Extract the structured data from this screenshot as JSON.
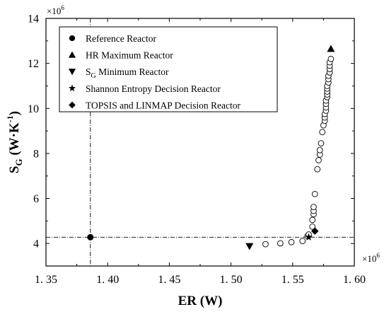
{
  "chart_data": {
    "type": "scatter",
    "title": "",
    "xlabel": "ER (W)",
    "ylabel": {
      "main": "S",
      "sub": "G",
      "units_pre": " (W·K",
      "sup": "-1",
      "units_post": ")"
    },
    "x_multiplier": {
      "base": "×10",
      "exp": "6"
    },
    "y_multiplier": {
      "base": "×10",
      "exp": "6"
    },
    "xlim": [
      1.35,
      1.6
    ],
    "ylim": [
      3.0,
      14.0
    ],
    "x_ticks": [
      "1. 35",
      "1. 40",
      "1. 45",
      "1. 50",
      "1. 55",
      "1. 60"
    ],
    "y_ticks": [
      "4",
      "6",
      "8",
      "10",
      "12",
      "14"
    ],
    "x_tick_values": [
      1.35,
      1.4,
      1.45,
      1.5,
      1.55,
      1.6
    ],
    "y_tick_values": [
      4,
      6,
      8,
      10,
      12,
      14
    ],
    "grid": false,
    "legend_position": "top-left",
    "legend": [
      {
        "marker": "circle",
        "label": "Reference Reactor"
      },
      {
        "marker": "triangle-up",
        "label": "HR Maximum Reactor"
      },
      {
        "marker": "triangle-down",
        "label": "S",
        "label_sub": "G",
        "label_post": " Minimum Reactor"
      },
      {
        "marker": "star",
        "label": "Shannon Entropy Decision Reactor"
      },
      {
        "marker": "diamond",
        "label": "TOPSIS and LINMAP Decision Reactor"
      }
    ],
    "reference_lines": {
      "x": 1.386,
      "y": 4.28
    },
    "pareto_front": [
      [
        1.528,
        3.97
      ],
      [
        1.54,
        4.01
      ],
      [
        1.549,
        4.06
      ],
      [
        1.558,
        4.11
      ],
      [
        1.562,
        4.33
      ],
      [
        1.563,
        4.4
      ],
      [
        1.566,
        4.75
      ],
      [
        1.566,
        5.05
      ],
      [
        1.567,
        5.3
      ],
      [
        1.567,
        5.45
      ],
      [
        1.567,
        5.62
      ],
      [
        1.568,
        6.2
      ],
      [
        1.57,
        7.3
      ],
      [
        1.571,
        7.7
      ],
      [
        1.572,
        7.95
      ],
      [
        1.572,
        8.15
      ],
      [
        1.573,
        8.45
      ],
      [
        1.574,
        8.95
      ],
      [
        1.575,
        9.25
      ],
      [
        1.576,
        9.45
      ],
      [
        1.576,
        9.6
      ],
      [
        1.576,
        9.75
      ],
      [
        1.577,
        9.9
      ],
      [
        1.577,
        10.05
      ],
      [
        1.577,
        10.2
      ],
      [
        1.577,
        10.35
      ],
      [
        1.578,
        10.5
      ],
      [
        1.578,
        10.62
      ],
      [
        1.578,
        10.75
      ],
      [
        1.578,
        10.88
      ],
      [
        1.578,
        11.0
      ],
      [
        1.579,
        11.15
      ],
      [
        1.579,
        11.3
      ],
      [
        1.579,
        11.45
      ],
      [
        1.58,
        11.6
      ],
      [
        1.58,
        11.75
      ],
      [
        1.58,
        11.9
      ],
      [
        1.58,
        12.05
      ],
      [
        1.581,
        12.2
      ]
    ],
    "special_points": [
      {
        "name": "reference",
        "marker": "circle",
        "x": 1.386,
        "y": 4.28
      },
      {
        "name": "hr-maximum",
        "marker": "triangle-up",
        "x": 1.581,
        "y": 12.65
      },
      {
        "name": "sg-minimum",
        "marker": "triangle-down",
        "x": 1.515,
        "y": 3.88
      },
      {
        "name": "shannon-entropy",
        "marker": "star",
        "x": 1.563,
        "y": 4.28
      },
      {
        "name": "topsis-linmap",
        "marker": "diamond",
        "x": 1.568,
        "y": 4.55
      }
    ]
  }
}
